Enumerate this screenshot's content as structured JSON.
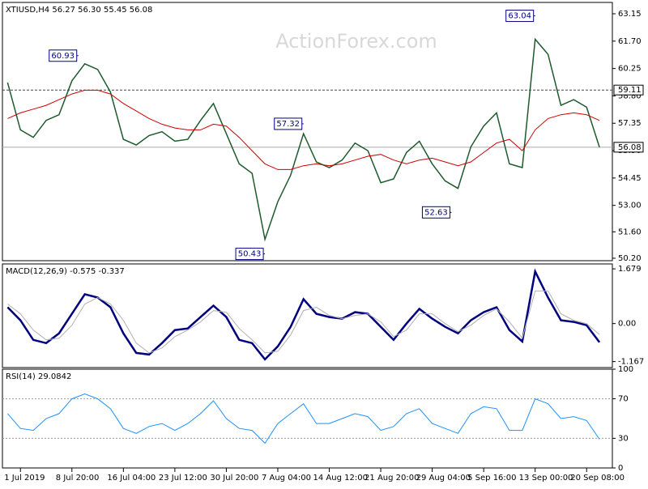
{
  "watermark": "ActionForex.com",
  "chart_data": [
    {
      "type": "price",
      "title": "XTIUSD,H4  56.27 56.30 55.45 56.08",
      "xlim": [
        -0.4,
        47
      ],
      "xticks": [
        {
          "value": 1,
          "label": "1 Jul 2019"
        },
        {
          "value": 5,
          "label": "8 Jul 20:00"
        },
        {
          "value": 9,
          "label": "16 Jul 04:00"
        },
        {
          "value": 13,
          "label": "23 Jul 12:00"
        },
        {
          "value": 17,
          "label": "30 Jul 20:00"
        },
        {
          "value": 21,
          "label": "7 Aug 04:00"
        },
        {
          "value": 25,
          "label": "14 Aug 12:00"
        },
        {
          "value": 29,
          "label": "21 Aug 20:00"
        },
        {
          "value": 33,
          "label": "29 Aug 04:00"
        },
        {
          "value": 37,
          "label": "5 Sep 16:00"
        },
        {
          "value": 41,
          "label": "13 Sep 00:00"
        },
        {
          "value": 45,
          "label": "20 Sep 08:00"
        }
      ],
      "ylim": [
        50.07,
        63.75
      ],
      "yticks": [
        {
          "value": 63.15,
          "label": "63.15"
        },
        {
          "value": 61.7,
          "label": "61.70"
        },
        {
          "value": 60.25,
          "label": "60.25"
        },
        {
          "value": 58.8,
          "label": "58.80"
        },
        {
          "value": 57.35,
          "label": "57.35"
        },
        {
          "value": 55.9,
          "label": "55.90"
        },
        {
          "value": 54.45,
          "label": "54.45"
        },
        {
          "value": 53,
          "label": "53.00"
        },
        {
          "value": 51.6,
          "label": "51.60"
        },
        {
          "value": 50.2,
          "label": "50.20"
        }
      ],
      "series": [
        {
          "color": "#1f5a2e",
          "values": [
            59.5,
            57.0,
            56.6,
            57.5,
            57.8,
            59.6,
            60.5,
            60.2,
            59.0,
            56.5,
            56.2,
            56.7,
            56.9,
            56.4,
            56.5,
            57.5,
            58.4,
            56.8,
            55.2,
            54.7,
            51.2,
            53.2,
            54.6,
            56.8,
            55.3,
            55.0,
            55.4,
            56.3,
            55.9,
            54.2,
            54.4,
            55.8,
            56.4,
            55.2,
            54.3,
            53.9,
            56.1,
            57.2,
            57.9,
            55.2,
            55.0,
            61.8,
            61.0,
            58.3,
            58.6,
            58.2,
            56.08
          ]
        },
        {
          "color": "#cc0000",
          "values": [
            57.6,
            57.9,
            58.1,
            58.3,
            58.6,
            58.9,
            59.1,
            59.1,
            58.9,
            58.4,
            58.0,
            57.6,
            57.3,
            57.1,
            57.0,
            57.0,
            57.3,
            57.2,
            56.6,
            55.9,
            55.2,
            54.9,
            54.9,
            55.1,
            55.2,
            55.1,
            55.2,
            55.4,
            55.6,
            55.7,
            55.4,
            55.2,
            55.4,
            55.5,
            55.3,
            55.1,
            55.3,
            55.8,
            56.3,
            56.5,
            55.9,
            57.0,
            57.6,
            57.8,
            57.9,
            57.8,
            57.5
          ]
        }
      ],
      "annotations": [
        {
          "value": 60.93,
          "x": 5.5
        },
        {
          "value": 57.32,
          "x": 23
        },
        {
          "value": 50.43,
          "x": 20
        },
        {
          "value": 52.63,
          "x": 34.5
        },
        {
          "value": 63.04,
          "x": 41
        }
      ],
      "levels": [
        {
          "value": 59.11,
          "label": "59.11",
          "style": "dotted"
        },
        {
          "value": 56.08,
          "label": "56.08",
          "style": "solid"
        }
      ]
    },
    {
      "type": "macd",
      "title": "MACD(12,26,9) -0.575 -0.337",
      "xlim": [
        -0.4,
        47
      ],
      "ylim": [
        -1.35,
        1.83
      ],
      "yticks": [
        {
          "value": 1.679,
          "label": "1.679"
        },
        {
          "value": 0,
          "label": "0.00"
        },
        {
          "value": -1.167,
          "label": "-1.167"
        }
      ],
      "series": [
        {
          "color": "#000080",
          "values": [
            0.5,
            0.1,
            -0.5,
            -0.6,
            -0.3,
            0.3,
            0.9,
            0.8,
            0.5,
            -0.3,
            -0.9,
            -0.95,
            -0.6,
            -0.2,
            -0.15,
            0.2,
            0.55,
            0.2,
            -0.5,
            -0.6,
            -1.1,
            -0.7,
            -0.1,
            0.75,
            0.3,
            0.2,
            0.15,
            0.35,
            0.3,
            -0.1,
            -0.5,
            0.0,
            0.45,
            0.15,
            -0.1,
            -0.3,
            0.1,
            0.35,
            0.5,
            -0.2,
            -0.55,
            1.6,
            0.8,
            0.1,
            0.05,
            -0.05,
            -0.575
          ]
        },
        {
          "color": "#b0b0b0",
          "values": [
            0.6,
            0.3,
            -0.2,
            -0.5,
            -0.45,
            -0.05,
            0.6,
            0.8,
            0.6,
            0.1,
            -0.6,
            -0.9,
            -0.75,
            -0.4,
            -0.2,
            0.05,
            0.4,
            0.35,
            -0.15,
            -0.5,
            -0.9,
            -0.85,
            -0.35,
            0.4,
            0.5,
            0.25,
            0.15,
            0.25,
            0.3,
            0.05,
            -0.4,
            -0.2,
            0.3,
            0.3,
            0.0,
            -0.25,
            -0.05,
            0.25,
            0.45,
            0.05,
            -0.45,
            1.0,
            1.0,
            0.3,
            0.1,
            0.0,
            -0.337
          ]
        }
      ]
    },
    {
      "type": "rsi",
      "title": "RSI(14) 29.0842",
      "xlim": [
        -0.4,
        47
      ],
      "ylim": [
        0,
        100
      ],
      "yticks": [
        100,
        70,
        30,
        0
      ],
      "grid_levels": [
        70,
        30
      ],
      "series": [
        {
          "color": "#1e90ff",
          "values": [
            55,
            40,
            38,
            50,
            55,
            70,
            75,
            70,
            60,
            40,
            35,
            42,
            45,
            38,
            45,
            55,
            68,
            50,
            40,
            38,
            25,
            45,
            55,
            65,
            45,
            45,
            50,
            55,
            52,
            38,
            42,
            55,
            60,
            45,
            40,
            35,
            55,
            62,
            60,
            38,
            38,
            70,
            65,
            50,
            52,
            48,
            29.0842
          ]
        }
      ]
    }
  ]
}
